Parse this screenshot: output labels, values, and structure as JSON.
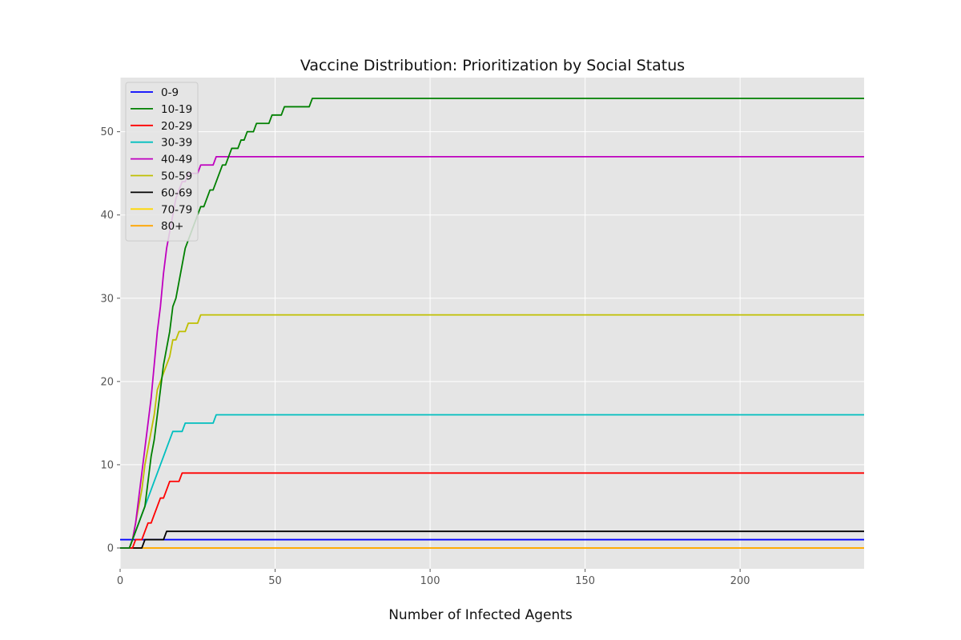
{
  "chart_data": {
    "type": "line",
    "title": "Vaccine Distribution: Prioritization by Social Status",
    "xlabel": "Number of Infected Agents",
    "ylabel": "",
    "xlim": [
      0,
      240
    ],
    "ylim": [
      -2.5,
      56.5
    ],
    "xticks": [
      0,
      50,
      100,
      150,
      200
    ],
    "yticks": [
      0,
      10,
      20,
      30,
      40,
      50
    ],
    "grid": true,
    "legend_position": "top-left",
    "series": [
      {
        "name": "0-9",
        "color": "#0000ff",
        "points": [
          [
            0,
            1
          ],
          [
            240,
            1
          ]
        ]
      },
      {
        "name": "10-19",
        "color": "#008000",
        "points": [
          [
            0,
            0
          ],
          [
            3,
            0
          ],
          [
            4,
            1
          ],
          [
            5,
            2
          ],
          [
            6,
            3
          ],
          [
            7,
            4
          ],
          [
            8,
            5
          ],
          [
            9,
            8
          ],
          [
            10,
            11
          ],
          [
            11,
            13
          ],
          [
            12,
            16
          ],
          [
            13,
            19
          ],
          [
            14,
            22
          ],
          [
            15,
            24
          ],
          [
            16,
            26
          ],
          [
            17,
            29
          ],
          [
            18,
            30
          ],
          [
            19,
            32
          ],
          [
            20,
            34
          ],
          [
            21,
            36
          ],
          [
            22,
            37
          ],
          [
            23,
            38
          ],
          [
            24,
            39
          ],
          [
            25,
            40
          ],
          [
            26,
            41
          ],
          [
            27,
            41
          ],
          [
            28,
            42
          ],
          [
            29,
            43
          ],
          [
            30,
            43
          ],
          [
            31,
            44
          ],
          [
            32,
            45
          ],
          [
            33,
            46
          ],
          [
            34,
            46
          ],
          [
            35,
            47
          ],
          [
            36,
            48
          ],
          [
            38,
            48
          ],
          [
            39,
            49
          ],
          [
            40,
            49
          ],
          [
            41,
            50
          ],
          [
            42,
            50
          ],
          [
            43,
            50
          ],
          [
            44,
            51
          ],
          [
            48,
            51
          ],
          [
            49,
            52
          ],
          [
            52,
            52
          ],
          [
            53,
            53
          ],
          [
            61,
            53
          ],
          [
            62,
            54
          ],
          [
            240,
            54
          ]
        ]
      },
      {
        "name": "20-29",
        "color": "#ff0000",
        "points": [
          [
            0,
            0
          ],
          [
            4,
            0
          ],
          [
            5,
            1
          ],
          [
            7,
            1
          ],
          [
            8,
            2
          ],
          [
            9,
            3
          ],
          [
            10,
            3
          ],
          [
            11,
            4
          ],
          [
            12,
            5
          ],
          [
            13,
            6
          ],
          [
            14,
            6
          ],
          [
            15,
            7
          ],
          [
            16,
            8
          ],
          [
            18,
            8
          ],
          [
            19,
            8
          ],
          [
            20,
            9
          ],
          [
            240,
            9
          ]
        ]
      },
      {
        "name": "30-39",
        "color": "#00bfbf",
        "points": [
          [
            0,
            0
          ],
          [
            3,
            0
          ],
          [
            4,
            1
          ],
          [
            5,
            2
          ],
          [
            6,
            3
          ],
          [
            7,
            4
          ],
          [
            8,
            5
          ],
          [
            9,
            6
          ],
          [
            10,
            7
          ],
          [
            11,
            8
          ],
          [
            12,
            9
          ],
          [
            13,
            10
          ],
          [
            14,
            11
          ],
          [
            15,
            12
          ],
          [
            16,
            13
          ],
          [
            17,
            14
          ],
          [
            19,
            14
          ],
          [
            20,
            14
          ],
          [
            21,
            15
          ],
          [
            29,
            15
          ],
          [
            30,
            15
          ],
          [
            31,
            16
          ],
          [
            240,
            16
          ]
        ]
      },
      {
        "name": "40-49",
        "color": "#bf00bf",
        "points": [
          [
            0,
            0
          ],
          [
            3,
            0
          ],
          [
            4,
            1
          ],
          [
            5,
            3
          ],
          [
            6,
            6
          ],
          [
            7,
            9
          ],
          [
            8,
            12
          ],
          [
            9,
            15
          ],
          [
            10,
            18
          ],
          [
            11,
            22
          ],
          [
            12,
            26
          ],
          [
            13,
            29
          ],
          [
            14,
            33
          ],
          [
            15,
            36
          ],
          [
            16,
            38
          ],
          [
            17,
            40
          ],
          [
            18,
            42
          ],
          [
            19,
            43
          ],
          [
            20,
            44
          ],
          [
            21,
            44
          ],
          [
            22,
            45
          ],
          [
            25,
            45
          ],
          [
            26,
            46
          ],
          [
            30,
            46
          ],
          [
            31,
            47
          ],
          [
            240,
            47
          ]
        ]
      },
      {
        "name": "50-59",
        "color": "#bfbf00",
        "points": [
          [
            0,
            0
          ],
          [
            3,
            0
          ],
          [
            4,
            1
          ],
          [
            5,
            3
          ],
          [
            6,
            5
          ],
          [
            7,
            7
          ],
          [
            8,
            10
          ],
          [
            9,
            12
          ],
          [
            10,
            14
          ],
          [
            11,
            16
          ],
          [
            12,
            19
          ],
          [
            13,
            20
          ],
          [
            14,
            21
          ],
          [
            15,
            22
          ],
          [
            16,
            23
          ],
          [
            17,
            25
          ],
          [
            18,
            25
          ],
          [
            19,
            26
          ],
          [
            20,
            26
          ],
          [
            21,
            26
          ],
          [
            22,
            27
          ],
          [
            24,
            27
          ],
          [
            25,
            27
          ],
          [
            26,
            28
          ],
          [
            240,
            28
          ]
        ]
      },
      {
        "name": "60-69",
        "color": "#000000",
        "points": [
          [
            0,
            0
          ],
          [
            7,
            0
          ],
          [
            8,
            1
          ],
          [
            14,
            1
          ],
          [
            15,
            2
          ],
          [
            240,
            2
          ]
        ]
      },
      {
        "name": "70-79",
        "color": "#ffd700",
        "points": [
          [
            0,
            0
          ],
          [
            240,
            0
          ]
        ]
      },
      {
        "name": "80+",
        "color": "#ffa500",
        "points": [
          [
            0,
            0
          ],
          [
            240,
            0
          ]
        ]
      }
    ]
  }
}
